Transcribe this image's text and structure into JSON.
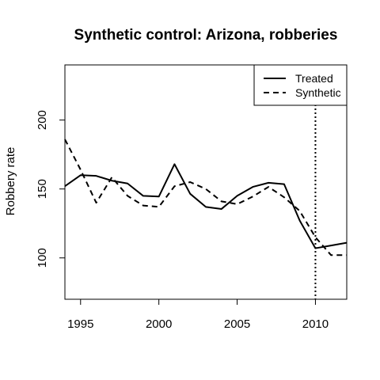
{
  "chart_data": {
    "type": "line",
    "title": "Synthetic control: Arizona, robberies",
    "xlabel": "",
    "ylabel": "Robbery rate",
    "xlim": [
      1994,
      2012
    ],
    "ylim": [
      70,
      240
    ],
    "x_ticks": [
      1995,
      2000,
      2005,
      2010
    ],
    "y_ticks": [
      100,
      150,
      200
    ],
    "x_tick_labels": [
      "1995",
      "2000",
      "2005",
      "2010"
    ],
    "y_tick_labels": [
      "100",
      "150",
      "200"
    ],
    "x": [
      1994,
      1995,
      1996,
      1997,
      1998,
      1999,
      2000,
      2001,
      2002,
      2003,
      2004,
      2005,
      2006,
      2007,
      2008,
      2009,
      2010,
      2011,
      2012
    ],
    "series": [
      {
        "name": "Treated",
        "line_style": "solid",
        "color": "#000000",
        "values": [
          152,
          160,
          159.5,
          156,
          154,
          145,
          144.5,
          168,
          146.5,
          137,
          135.5,
          145,
          151.5,
          154.5,
          153.5,
          127,
          107,
          109,
          111
        ]
      },
      {
        "name": "Synthetic",
        "line_style": "dashed",
        "color": "#000000",
        "values": [
          186,
          164,
          140,
          158.5,
          145,
          138,
          137,
          152,
          155,
          150,
          141,
          139,
          144.5,
          151.5,
          144,
          134,
          115,
          102,
          102
        ]
      }
    ],
    "vline": {
      "x": 2010,
      "line_style": "dotted"
    },
    "legend": {
      "position": "top-right",
      "entries": [
        "Treated",
        "Synthetic"
      ]
    },
    "grid": false
  }
}
